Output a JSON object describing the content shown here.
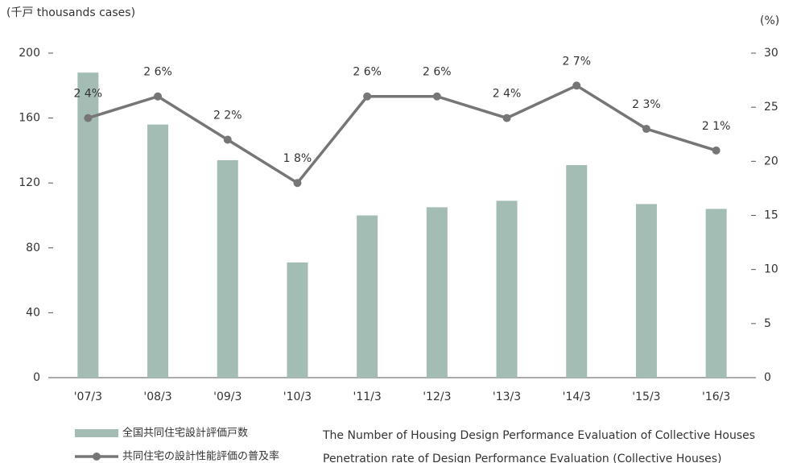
{
  "chart_data": {
    "type": "bar",
    "y_label": "(千戸 thousands cases)",
    "y2_label": "(%)",
    "categories": [
      "'07/3",
      "'08/3",
      "'09/3",
      "'10/3",
      "'11/3",
      "'12/3",
      "'13/3",
      "'14/3",
      "'15/3",
      "'16/3"
    ],
    "series": [
      {
        "name": "全国共同住宅設計評価戸数",
        "description": "The Number of Housing Design Performance Evaluation of Collective Houses",
        "type": "bar",
        "color": "#a3bdb4",
        "values": [
          188,
          156,
          134,
          71,
          100,
          105,
          109,
          131,
          107,
          104
        ]
      },
      {
        "name": "共同住宅の設計性能評価の普及率",
        "description": "Penetration rate of Design Performance Evaluation (Collective Houses)",
        "type": "line",
        "axis": "y2",
        "color": "#767676",
        "values": [
          24,
          26,
          22,
          18,
          26,
          26,
          24,
          27,
          23,
          21
        ],
        "value_labels": [
          "2 4%",
          "2 6%",
          "2 2%",
          "1 8%",
          "2 6%",
          "2 6%",
          "2 4%",
          "2 7%",
          "2 3%",
          "2 1%"
        ]
      }
    ],
    "ylim": [
      0,
      200
    ],
    "yticks": [
      0,
      40,
      80,
      120,
      160,
      200
    ],
    "y2lim": [
      0,
      30
    ],
    "y2ticks": [
      0,
      5,
      10,
      15,
      20,
      25,
      30
    ],
    "grid": false
  }
}
